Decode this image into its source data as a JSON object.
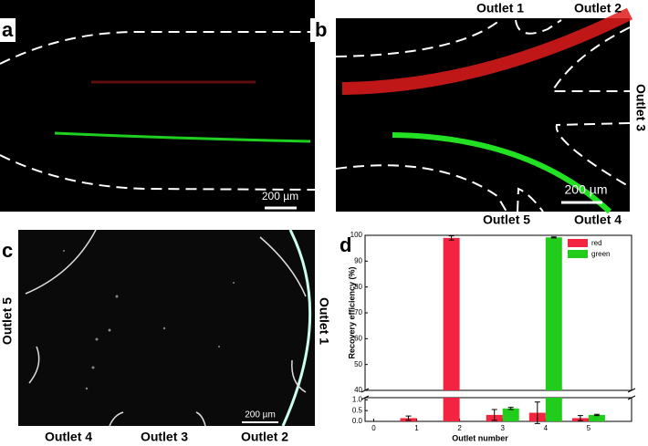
{
  "panels": [
    {
      "label": "a",
      "scale_bar": "200 µm"
    },
    {
      "label": "b",
      "scale_bar": "200 µm",
      "outlets": [
        "Outlet 1",
        "Outlet 2",
        "Outlet 3",
        "Outlet 4",
        "Outlet 5"
      ]
    },
    {
      "label": "c",
      "scale_bar": "200 µm",
      "outlets": [
        "Outlet 1",
        "Outlet 2",
        "Outlet 3",
        "Outlet 4",
        "Outlet 5"
      ]
    },
    {
      "label": "d"
    }
  ],
  "chart_data": {
    "type": "bar",
    "x_label": "Outlet number",
    "y_label": "Recovery efficiency (%)",
    "x": [
      1,
      2,
      3,
      4,
      5
    ],
    "series": [
      {
        "name": "red",
        "color": "#f2243f",
        "values": [
          0.15,
          99,
          0.3,
          0.4,
          0.15
        ],
        "errors": [
          0.1,
          0.8,
          0.25,
          0.5,
          0.12
        ]
      },
      {
        "name": "green",
        "color": "#22cc1c",
        "values": [
          0,
          0,
          0.6,
          99.2,
          0.3
        ],
        "errors": [
          0,
          0,
          0.05,
          0.2,
          0.03
        ]
      }
    ],
    "xlim": [
      -0.2,
      6
    ],
    "xticks": [
      0,
      1,
      2,
      3,
      4,
      5
    ],
    "ylim_upper": [
      40,
      100
    ],
    "yticks_upper": [
      40,
      50,
      60,
      70,
      80,
      90,
      100
    ],
    "ylim_lower": [
      0,
      1.1
    ],
    "yticks_lower": [
      {
        "value": 0,
        "label": "0.0"
      },
      {
        "value": 0.5,
        "label": "0.5"
      },
      {
        "value": 1,
        "label": "1.0"
      }
    ],
    "legend": "upper right"
  }
}
